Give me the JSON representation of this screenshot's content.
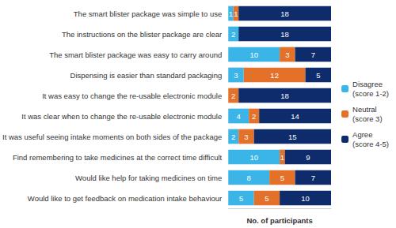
{
  "chart_data": {
    "type": "bar",
    "orientation": "horizontal",
    "stacked": true,
    "data_labels": true,
    "tick_labels": "y",
    "grid": false,
    "legend": "right",
    "x_label": "No. of participants",
    "xlim": [
      0,
      20
    ],
    "categories": [
      "The smart blister package was simple to use",
      "The instructions on the blister package are clear",
      "The smart blister package was easy to carry around",
      "Dispensing is easier than standard packaging",
      "It was easy to change the re-usable electronic module",
      "It was clear when to change the re-usable electronic module",
      "It was useful seeing intake moments on both sides of the package",
      "Find remembering to take medicines at the correct time difficult",
      "Would like help for taking medicines on time",
      "Would like to get feedback on medication intake behaviour"
    ],
    "series": [
      {
        "name": "Disagree (score 1-2)",
        "color": "#3bb5e8",
        "values": [
          1,
          2,
          10,
          3,
          null,
          4,
          2,
          10,
          8,
          5
        ]
      },
      {
        "name": "Neutral (score 3)",
        "color": "#e3712a",
        "values": [
          1,
          null,
          3,
          12,
          2,
          2,
          3,
          1,
          5,
          5
        ]
      },
      {
        "name": "Agree (score 4-5)",
        "color": "#0e2b6b",
        "values": [
          18,
          18,
          7,
          5,
          18,
          14,
          15,
          9,
          7,
          10
        ]
      }
    ]
  }
}
